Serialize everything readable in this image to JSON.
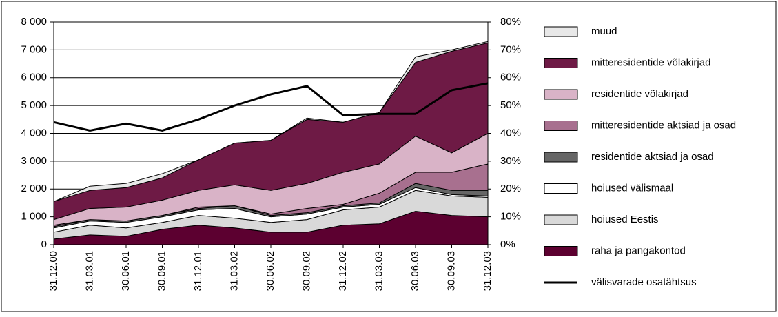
{
  "chart_data": {
    "type": "stacked-area-line",
    "categories": [
      "31.12.00",
      "31.03.01",
      "30.06.01",
      "30.09.01",
      "31.12.01",
      "31.03.02",
      "30.06.02",
      "30.09.02",
      "31.12.02",
      "31.03.03",
      "30.06.03",
      "30.09.03",
      "31.12.03"
    ],
    "ylim": [
      0,
      8000
    ],
    "yticks": [
      0,
      {
        "value": 1000,
        "label": "1 000"
      },
      {
        "value": 2000,
        "label": "2 000"
      },
      {
        "value": 3000,
        "label": "3 000"
      },
      {
        "value": 4000,
        "label": "4 000"
      },
      {
        "value": 5000,
        "label": "5 000"
      },
      {
        "value": 6000,
        "label": "6 000"
      },
      {
        "value": 7000,
        "label": "7 000"
      },
      {
        "value": 8000,
        "label": "8 000"
      }
    ],
    "y2lim": [
      0,
      80
    ],
    "y2ticks": [
      {
        "value": 0,
        "label": "0%"
      },
      {
        "value": 10,
        "label": "10%"
      },
      {
        "value": 20,
        "label": "20%"
      },
      {
        "value": 30,
        "label": "30%"
      },
      {
        "value": 40,
        "label": "40%"
      },
      {
        "value": 50,
        "label": "50%"
      },
      {
        "value": 60,
        "label": "60%"
      },
      {
        "value": 70,
        "label": "70%"
      },
      {
        "value": 80,
        "label": "80%"
      }
    ],
    "grid": true,
    "series": [
      {
        "name": "raha ja pangakontod",
        "color": "#5c0030",
        "values": [
          200,
          350,
          300,
          550,
          700,
          600,
          450,
          450,
          700,
          750,
          1200,
          1050,
          1000
        ]
      },
      {
        "name": "hoiused Eestis",
        "color": "#d9d9d9",
        "values": [
          250,
          350,
          300,
          250,
          350,
          350,
          350,
          450,
          550,
          600,
          750,
          700,
          700
        ]
      },
      {
        "name": "hoiused välismaal",
        "color": "#ffffff",
        "values": [
          150,
          150,
          200,
          200,
          200,
          350,
          200,
          200,
          100,
          100,
          100,
          50,
          50
        ]
      },
      {
        "name": "residentide aktsiad ja osad",
        "color": "#666666",
        "values": [
          50,
          50,
          50,
          50,
          50,
          100,
          50,
          50,
          50,
          50,
          150,
          150,
          200
        ]
      },
      {
        "name": "mitteresidentide aktsiad ja osad",
        "color": "#a8708f",
        "values": [
          50,
          0,
          0,
          0,
          50,
          0,
          50,
          150,
          50,
          350,
          400,
          650,
          950
        ]
      },
      {
        "name": "residentide võlakirjad",
        "color": "#d9b3c7",
        "values": [
          200,
          400,
          500,
          550,
          600,
          750,
          850,
          900,
          1150,
          1050,
          1300,
          700,
          1100
        ]
      },
      {
        "name": "mitteresidentide võlakirjad",
        "color": "#6e1a45",
        "values": [
          650,
          650,
          700,
          800,
          1100,
          1500,
          1800,
          2300,
          1800,
          1850,
          2650,
          3650,
          3250
        ]
      },
      {
        "name": "muud",
        "color": "#e8e8e8",
        "values": [
          0,
          150,
          150,
          150,
          0,
          0,
          0,
          50,
          0,
          0,
          200,
          50,
          50
        ]
      },
      {
        "name": "välisvarade osatähtsus",
        "color": "#000000",
        "type": "line",
        "axis": "y2",
        "values": [
          44,
          41,
          43.5,
          41,
          45,
          50,
          54,
          57,
          46.5,
          47,
          47,
          55.5,
          58
        ]
      }
    ]
  }
}
